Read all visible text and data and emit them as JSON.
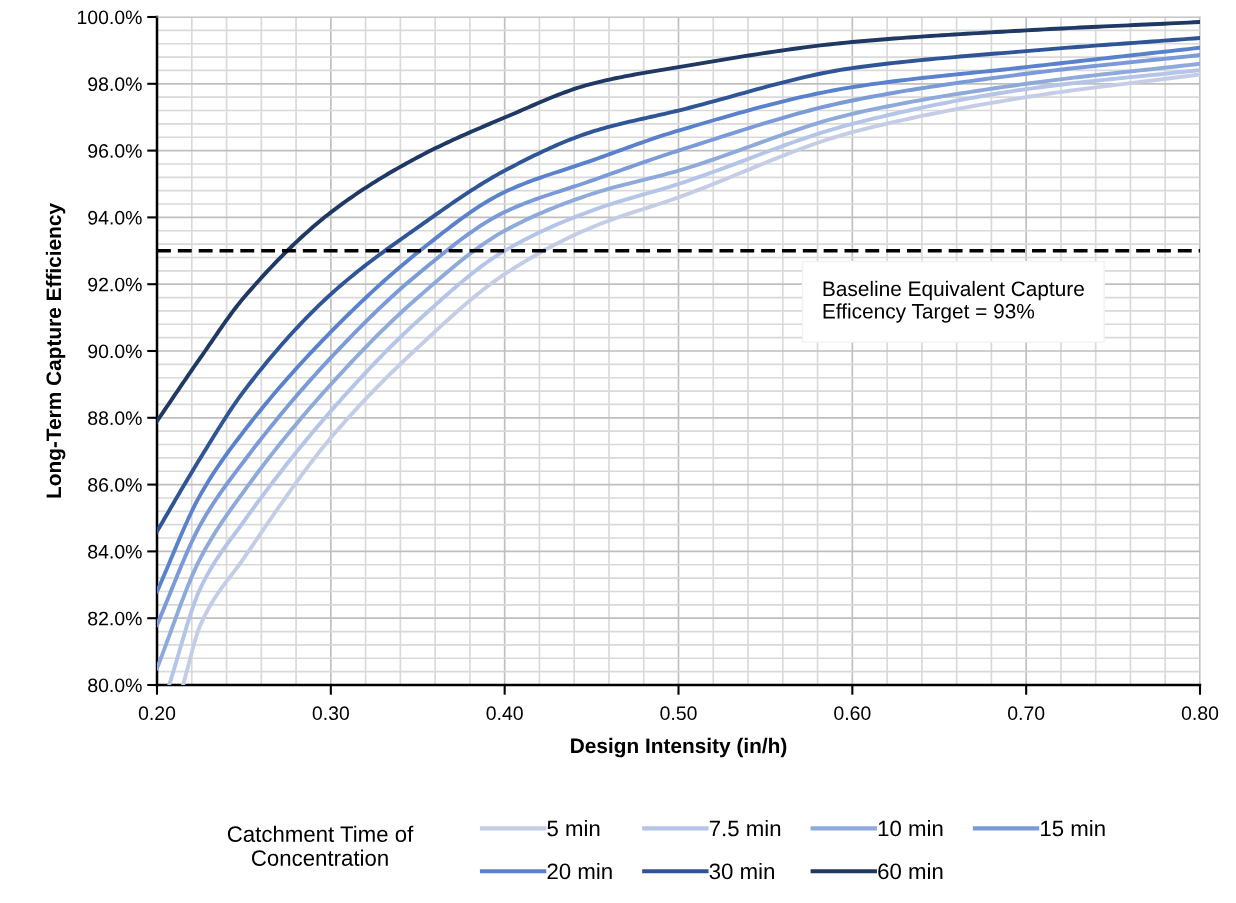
{
  "chart_data": {
    "type": "line",
    "xlabel": "Design Intensity (in/h)",
    "ylabel": "Long-Term Capture Efficiency",
    "legend_title": "Catchment Time of Concentration",
    "legend": "bottom",
    "grid": true,
    "line_style": "solid",
    "marker": "none",
    "xlim": [
      0.2,
      0.8
    ],
    "ylim": [
      80,
      100
    ],
    "xticks": [
      {
        "value": 0.2,
        "label": "0.20"
      },
      {
        "value": 0.3,
        "label": "0.30"
      },
      {
        "value": 0.4,
        "label": "0.40"
      },
      {
        "value": 0.5,
        "label": "0.50"
      },
      {
        "value": 0.6,
        "label": "0.60"
      },
      {
        "value": 0.7,
        "label": "0.70"
      },
      {
        "value": 0.8,
        "label": "0.80"
      }
    ],
    "yticks": [
      {
        "value": 80,
        "label": "80.0%"
      },
      {
        "value": 82,
        "label": "82.0%"
      },
      {
        "value": 84,
        "label": "84.0%"
      },
      {
        "value": 86,
        "label": "86.0%"
      },
      {
        "value": 88,
        "label": "88.0%"
      },
      {
        "value": 90,
        "label": "90.0%"
      },
      {
        "value": 92,
        "label": "92.0%"
      },
      {
        "value": 94,
        "label": "94.0%"
      },
      {
        "value": 96,
        "label": "96.0%"
      },
      {
        "value": 98,
        "label": "98.0%"
      },
      {
        "value": 100,
        "label": "100.0%"
      }
    ],
    "ref_lines": [
      {
        "axis": "y",
        "value": 93,
        "label": "Baseline Equivalent Capture Efficency Target = 93%",
        "color": "#000000",
        "line_style": "dashed"
      }
    ],
    "series": [
      {
        "name": "5 min",
        "color": "#c5cde6",
        "x": [
          0.215,
          0.225,
          0.25,
          0.3,
          0.35,
          0.4,
          0.45,
          0.5,
          0.6,
          0.7,
          0.8
        ],
        "values": [
          80.0,
          81.8,
          83.8,
          87.4,
          90.1,
          92.3,
          93.7,
          94.6,
          96.55,
          97.6,
          98.28
        ]
      },
      {
        "name": "7.5 min",
        "color": "#b4c5e8",
        "x": [
          0.207,
          0.225,
          0.25,
          0.3,
          0.35,
          0.4,
          0.45,
          0.5,
          0.6,
          0.7,
          0.8
        ],
        "values": [
          80.0,
          82.9,
          84.9,
          88.2,
          90.9,
          93.0,
          94.2,
          95.0,
          96.8,
          97.84,
          98.41
        ]
      },
      {
        "name": "10 min",
        "color": "#8eaadb",
        "x": [
          0.2,
          0.225,
          0.25,
          0.3,
          0.35,
          0.4,
          0.45,
          0.5,
          0.6,
          0.7,
          0.8
        ],
        "values": [
          80.5,
          83.8,
          85.8,
          89.0,
          91.6,
          93.6,
          94.7,
          95.4,
          97.1,
          98.0,
          98.6
        ]
      },
      {
        "name": "15 min",
        "color": "#7a9ad8",
        "x": [
          0.2,
          0.225,
          0.25,
          0.3,
          0.35,
          0.4,
          0.45,
          0.5,
          0.6,
          0.7,
          0.8
        ],
        "values": [
          81.8,
          84.8,
          86.7,
          89.8,
          92.3,
          94.16,
          95.1,
          96.0,
          97.5,
          98.3,
          98.86
        ]
      },
      {
        "name": "20 min",
        "color": "#5a82cc",
        "x": [
          0.2,
          0.225,
          0.25,
          0.3,
          0.35,
          0.4,
          0.45,
          0.5,
          0.6,
          0.7,
          0.8
        ],
        "values": [
          82.8,
          85.7,
          87.6,
          90.57,
          92.95,
          94.76,
          95.7,
          96.6,
          97.9,
          98.5,
          99.08
        ]
      },
      {
        "name": "30 min",
        "color": "#2f5597",
        "x": [
          0.2,
          0.225,
          0.25,
          0.3,
          0.35,
          0.4,
          0.45,
          0.5,
          0.6,
          0.7,
          0.8
        ],
        "values": [
          84.6,
          86.8,
          88.8,
          91.7,
          93.7,
          95.4,
          96.56,
          97.2,
          98.47,
          98.98,
          99.37
        ]
      },
      {
        "name": "60 min",
        "color": "#1f3864",
        "x": [
          0.2,
          0.225,
          0.25,
          0.3,
          0.35,
          0.4,
          0.45,
          0.5,
          0.6,
          0.7,
          0.8
        ],
        "values": [
          87.9,
          89.8,
          91.6,
          94.15,
          95.8,
          96.99,
          98.0,
          98.5,
          99.25,
          99.6,
          99.85
        ]
      }
    ]
  }
}
